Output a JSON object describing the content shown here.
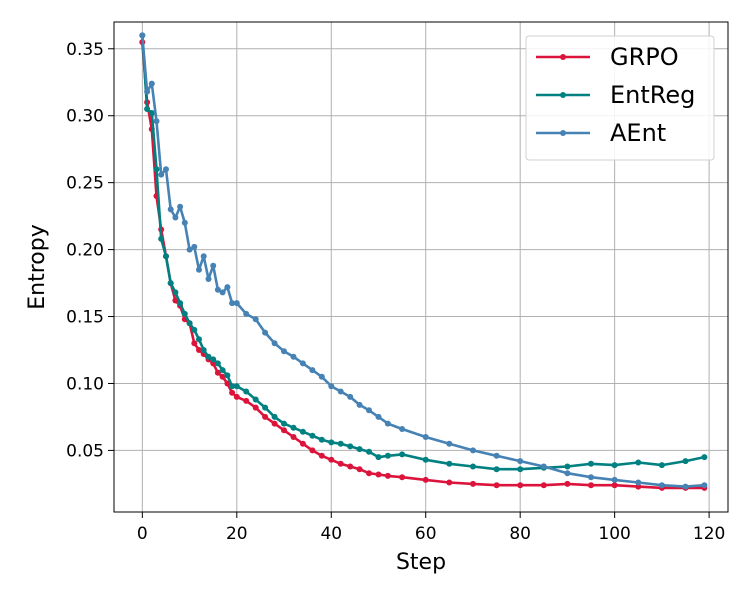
{
  "chart_data": {
    "type": "line",
    "title": "",
    "xlabel": "Step",
    "ylabel": "Entropy",
    "xlim": [
      -6,
      124
    ],
    "ylim": [
      0.004,
      0.37
    ],
    "xticks": [
      0,
      20,
      40,
      60,
      80,
      100,
      120
    ],
    "yticks": [
      0.05,
      0.1,
      0.15,
      0.2,
      0.25,
      0.3,
      0.35
    ],
    "xtick_labels": [
      "0",
      "20",
      "40",
      "60",
      "80",
      "100",
      "120"
    ],
    "ytick_labels": [
      "0.05",
      "0.10",
      "0.15",
      "0.20",
      "0.25",
      "0.30",
      "0.35"
    ],
    "grid": true,
    "legend_position": "top-right",
    "markers": "circle",
    "series": [
      {
        "name": "GRPO",
        "color": "#dc143c",
        "points": [
          [
            0,
            0.355
          ],
          [
            1,
            0.31
          ],
          [
            2,
            0.29
          ],
          [
            3,
            0.24
          ],
          [
            4,
            0.215
          ],
          [
            5,
            0.195
          ],
          [
            6,
            0.175
          ],
          [
            7,
            0.162
          ],
          [
            8,
            0.158
          ],
          [
            9,
            0.148
          ],
          [
            10,
            0.145
          ],
          [
            11,
            0.13
          ],
          [
            12,
            0.125
          ],
          [
            13,
            0.122
          ],
          [
            14,
            0.118
          ],
          [
            15,
            0.115
          ],
          [
            16,
            0.108
          ],
          [
            17,
            0.105
          ],
          [
            18,
            0.1
          ],
          [
            19,
            0.093
          ],
          [
            20,
            0.09
          ],
          [
            22,
            0.087
          ],
          [
            24,
            0.082
          ],
          [
            26,
            0.075
          ],
          [
            28,
            0.07
          ],
          [
            30,
            0.065
          ],
          [
            32,
            0.06
          ],
          [
            34,
            0.055
          ],
          [
            36,
            0.05
          ],
          [
            38,
            0.046
          ],
          [
            40,
            0.043
          ],
          [
            42,
            0.04
          ],
          [
            44,
            0.038
          ],
          [
            46,
            0.036
          ],
          [
            48,
            0.033
          ],
          [
            50,
            0.032
          ],
          [
            52,
            0.031
          ],
          [
            55,
            0.03
          ],
          [
            60,
            0.028
          ],
          [
            65,
            0.026
          ],
          [
            70,
            0.025
          ],
          [
            75,
            0.024
          ],
          [
            80,
            0.024
          ],
          [
            85,
            0.024
          ],
          [
            90,
            0.025
          ],
          [
            95,
            0.024
          ],
          [
            100,
            0.024
          ],
          [
            105,
            0.023
          ],
          [
            110,
            0.022
          ],
          [
            115,
            0.022
          ],
          [
            119,
            0.022
          ]
        ]
      },
      {
        "name": "EntReg",
        "color": "#008080",
        "points": [
          [
            0,
            0.36
          ],
          [
            1,
            0.305
          ],
          [
            2,
            0.302
          ],
          [
            3,
            0.26
          ],
          [
            4,
            0.208
          ],
          [
            5,
            0.195
          ],
          [
            6,
            0.175
          ],
          [
            7,
            0.168
          ],
          [
            8,
            0.16
          ],
          [
            9,
            0.152
          ],
          [
            10,
            0.145
          ],
          [
            11,
            0.14
          ],
          [
            12,
            0.133
          ],
          [
            13,
            0.125
          ],
          [
            14,
            0.12
          ],
          [
            15,
            0.118
          ],
          [
            16,
            0.115
          ],
          [
            17,
            0.11
          ],
          [
            18,
            0.106
          ],
          [
            19,
            0.098
          ],
          [
            20,
            0.098
          ],
          [
            22,
            0.094
          ],
          [
            24,
            0.088
          ],
          [
            26,
            0.082
          ],
          [
            28,
            0.075
          ],
          [
            30,
            0.07
          ],
          [
            32,
            0.067
          ],
          [
            34,
            0.064
          ],
          [
            36,
            0.061
          ],
          [
            38,
            0.058
          ],
          [
            40,
            0.056
          ],
          [
            42,
            0.055
          ],
          [
            44,
            0.053
          ],
          [
            46,
            0.051
          ],
          [
            48,
            0.049
          ],
          [
            50,
            0.045
          ],
          [
            52,
            0.046
          ],
          [
            55,
            0.047
          ],
          [
            60,
            0.043
          ],
          [
            65,
            0.04
          ],
          [
            70,
            0.038
          ],
          [
            75,
            0.036
          ],
          [
            80,
            0.036
          ],
          [
            85,
            0.037
          ],
          [
            90,
            0.038
          ],
          [
            95,
            0.04
          ],
          [
            100,
            0.039
          ],
          [
            105,
            0.041
          ],
          [
            110,
            0.039
          ],
          [
            115,
            0.042
          ],
          [
            119,
            0.045
          ]
        ]
      },
      {
        "name": "AEnt",
        "color": "#4682b4",
        "points": [
          [
            0,
            0.36
          ],
          [
            1,
            0.318
          ],
          [
            2,
            0.324
          ],
          [
            3,
            0.296
          ],
          [
            4,
            0.256
          ],
          [
            5,
            0.26
          ],
          [
            6,
            0.23
          ],
          [
            7,
            0.224
          ],
          [
            8,
            0.232
          ],
          [
            9,
            0.22
          ],
          [
            10,
            0.2
          ],
          [
            11,
            0.202
          ],
          [
            12,
            0.185
          ],
          [
            13,
            0.195
          ],
          [
            14,
            0.178
          ],
          [
            15,
            0.188
          ],
          [
            16,
            0.17
          ],
          [
            17,
            0.168
          ],
          [
            18,
            0.172
          ],
          [
            19,
            0.16
          ],
          [
            20,
            0.16
          ],
          [
            22,
            0.152
          ],
          [
            24,
            0.148
          ],
          [
            26,
            0.138
          ],
          [
            28,
            0.13
          ],
          [
            30,
            0.124
          ],
          [
            32,
            0.12
          ],
          [
            34,
            0.115
          ],
          [
            36,
            0.11
          ],
          [
            38,
            0.105
          ],
          [
            40,
            0.098
          ],
          [
            42,
            0.094
          ],
          [
            44,
            0.09
          ],
          [
            46,
            0.084
          ],
          [
            48,
            0.08
          ],
          [
            50,
            0.075
          ],
          [
            52,
            0.07
          ],
          [
            55,
            0.066
          ],
          [
            60,
            0.06
          ],
          [
            65,
            0.055
          ],
          [
            70,
            0.05
          ],
          [
            75,
            0.046
          ],
          [
            80,
            0.042
          ],
          [
            85,
            0.038
          ],
          [
            90,
            0.033
          ],
          [
            95,
            0.03
          ],
          [
            100,
            0.028
          ],
          [
            105,
            0.026
          ],
          [
            110,
            0.024
          ],
          [
            115,
            0.023
          ],
          [
            119,
            0.024
          ]
        ]
      }
    ]
  }
}
